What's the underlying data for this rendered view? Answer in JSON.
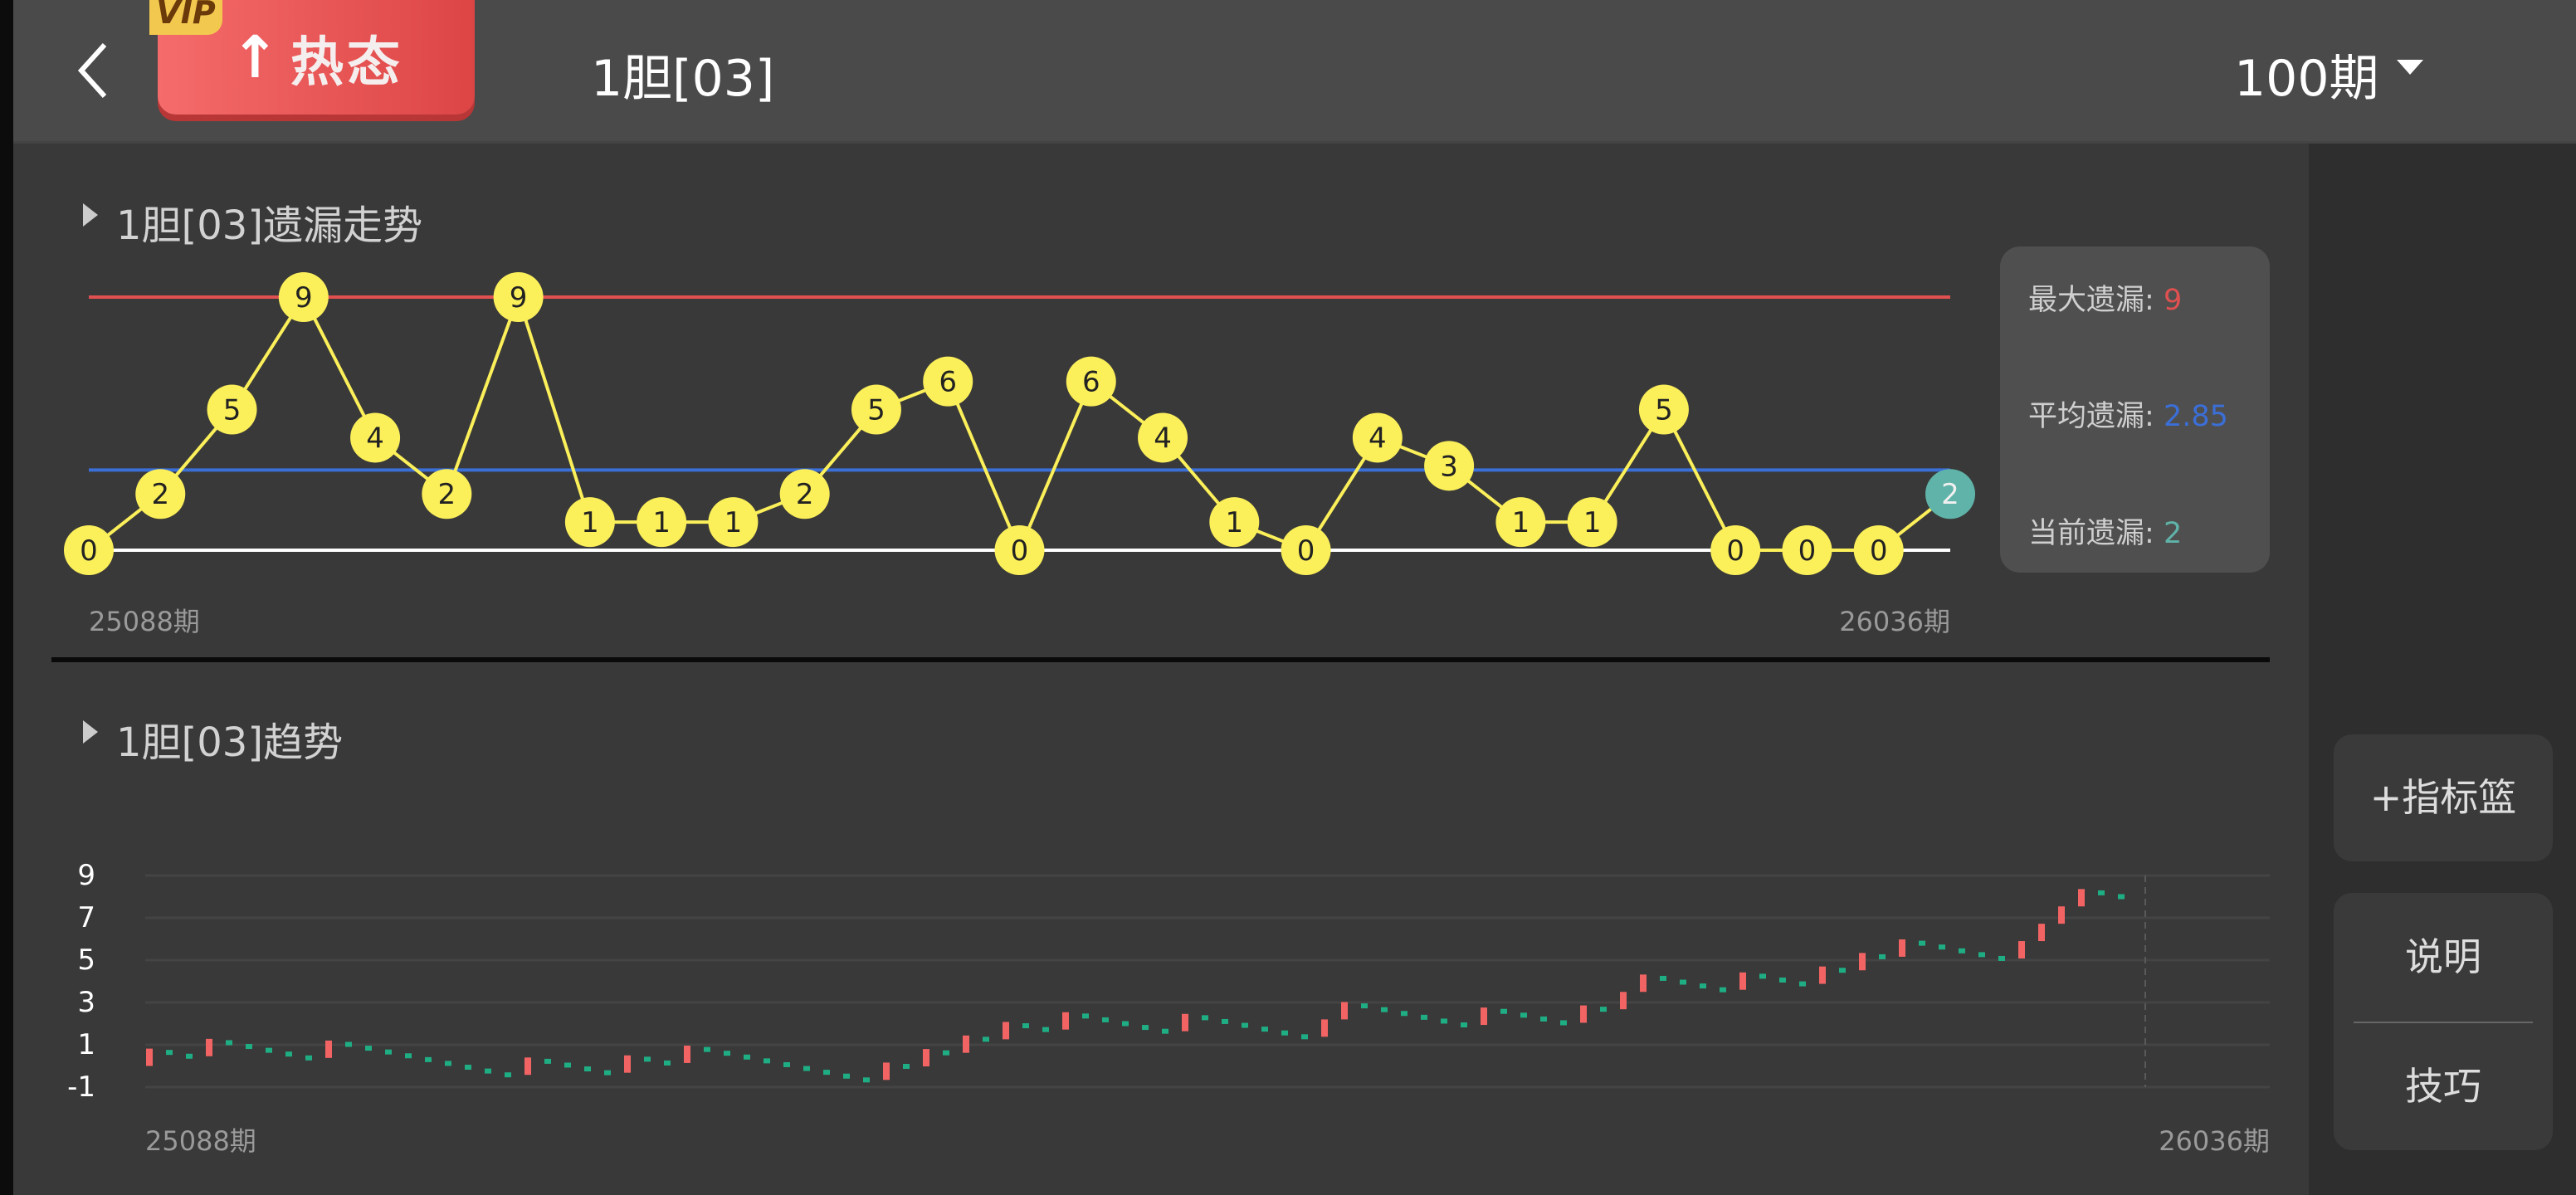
{
  "header": {
    "vip_badge": "VIP",
    "hot_button_label": "热态",
    "title": "1胆[03]",
    "period_select": "100期"
  },
  "colors": {
    "max_line": "#e05050",
    "avg_line": "#3b6fd8",
    "zero_line": "#ffffff",
    "point_fill": "#fbef5a",
    "current_point_fill": "#5fb3a8",
    "hit_bar": "#f26464",
    "miss_dot": "#1fae84"
  },
  "omission_section": {
    "title": "1胆[03]遗漏走势",
    "stats": {
      "max_label": "最大遗漏:",
      "max_value": "9",
      "avg_label": "平均遗漏:",
      "avg_value": "2.85",
      "current_label": "当前遗漏:",
      "current_value": "2"
    },
    "x_start_label": "25088期",
    "x_end_label": "26036期"
  },
  "trend_section": {
    "title": "1胆[03]趋势",
    "x_start_label": "25088期",
    "x_end_label": "26036期"
  },
  "side_buttons": {
    "add_indicator": "+指标篮",
    "explain": "说明",
    "tips": "技巧"
  },
  "chart_data": [
    {
      "type": "line",
      "values": [
        0,
        2,
        5,
        9,
        4,
        2,
        9,
        1,
        1,
        1,
        2,
        5,
        6,
        0,
        6,
        4,
        1,
        0,
        4,
        3,
        1,
        1,
        5,
        0,
        0,
        0,
        2
      ],
      "labels": [
        "0",
        "2",
        "5",
        "9",
        "4",
        "2",
        "9",
        "1",
        "1",
        "1",
        "2",
        "5",
        "6",
        "0",
        "6",
        "4",
        "1",
        "0",
        "4",
        "3",
        "1",
        "1",
        "5",
        "0",
        "0",
        "0",
        "2"
      ],
      "reference_lines": {
        "max": 9,
        "average": 2.85,
        "zero": 0
      },
      "ylim": [
        0,
        9
      ],
      "x_tick_labels": [
        "25088期",
        "26036期"
      ],
      "grid": false
    },
    {
      "type": "bar",
      "values": [
        0.82,
        0.64,
        0.46,
        1.28,
        1.1,
        0.92,
        0.74,
        0.56,
        0.38,
        1.2,
        1.02,
        0.84,
        0.66,
        0.48,
        0.3,
        0.12,
        -0.06,
        -0.24,
        -0.42,
        0.4,
        0.22,
        0.04,
        -0.14,
        -0.32,
        0.5,
        0.32,
        0.14,
        0.96,
        0.78,
        0.6,
        0.42,
        0.24,
        0.06,
        -0.12,
        -0.3,
        -0.48,
        -0.66,
        0.16,
        -0.02,
        0.8,
        0.62,
        1.44,
        1.26,
        2.08,
        1.9,
        1.72,
        2.54,
        2.36,
        2.18,
        2.0,
        1.82,
        1.64,
        2.46,
        2.28,
        2.1,
        1.92,
        1.74,
        1.56,
        1.38,
        2.2,
        3.02,
        2.84,
        2.66,
        2.48,
        2.3,
        2.12,
        1.94,
        2.76,
        2.58,
        2.4,
        2.22,
        2.04,
        2.86,
        2.68,
        3.5,
        4.32,
        4.14,
        3.96,
        3.78,
        3.6,
        4.42,
        4.24,
        4.06,
        3.88,
        4.7,
        4.52,
        5.34,
        5.16,
        5.98,
        5.8,
        5.62,
        5.44,
        5.26,
        5.08,
        5.9,
        6.72,
        7.54,
        8.36,
        8.18,
        8.0
      ],
      "y_tick_labels": [
        "9",
        "7",
        "5",
        "3",
        "1",
        "-1"
      ],
      "ylim": [
        -1,
        9
      ],
      "x_tick_labels": [
        "25088期",
        "26036期"
      ],
      "grid": true
    }
  ]
}
